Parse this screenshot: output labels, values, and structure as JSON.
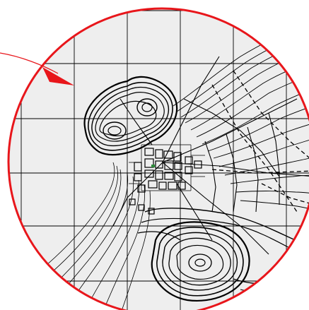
{
  "view": {
    "kind": "circular-magnifier-detail",
    "colors": {
      "frame": "#e8161b",
      "map_background": "#eeeeee",
      "grid": "#000000",
      "contour": "#000000",
      "pointer_arrow": "#e8161b",
      "page": "#ffffff",
      "highlight_feature": "#2e8b3a"
    }
  },
  "map": {
    "grid": {
      "columns": 6,
      "rows": 6,
      "visible": true
    },
    "features": [
      "grid-lines",
      "contour-lines",
      "road-network",
      "town-blocks",
      "dashed-boundaries"
    ]
  },
  "icons": {
    "pointer": "arrow-icon"
  }
}
